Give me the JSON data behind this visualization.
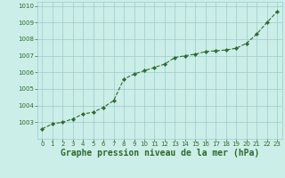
{
  "x": [
    0,
    1,
    2,
    3,
    4,
    5,
    6,
    7,
    8,
    9,
    10,
    11,
    12,
    13,
    14,
    15,
    16,
    17,
    18,
    19,
    20,
    21,
    22,
    23
  ],
  "y": [
    1002.6,
    1002.9,
    1003.0,
    1003.2,
    1003.5,
    1003.6,
    1003.9,
    1004.3,
    1005.6,
    1005.9,
    1006.1,
    1006.3,
    1006.5,
    1006.9,
    1007.0,
    1007.1,
    1007.25,
    1007.3,
    1007.35,
    1007.45,
    1007.75,
    1008.3,
    1009.0,
    1009.65
  ],
  "xlabel": "Graphe pression niveau de la mer (hPa)",
  "ylim": [
    1002.0,
    1010.25
  ],
  "xlim": [
    -0.5,
    23.5
  ],
  "yticks": [
    1003,
    1004,
    1005,
    1006,
    1007,
    1008,
    1009,
    1010
  ],
  "xticks": [
    0,
    1,
    2,
    3,
    4,
    5,
    6,
    7,
    8,
    9,
    10,
    11,
    12,
    13,
    14,
    15,
    16,
    17,
    18,
    19,
    20,
    21,
    22,
    23
  ],
  "line_color": "#2d6a2d",
  "marker_color": "#2d6a2d",
  "bg_color": "#cceee8",
  "grid_color": "#99cccc",
  "xlabel_color": "#2d6a2d",
  "tick_color": "#2d6a2d",
  "tick_fontsize": 5.0,
  "xlabel_fontsize": 7.0
}
